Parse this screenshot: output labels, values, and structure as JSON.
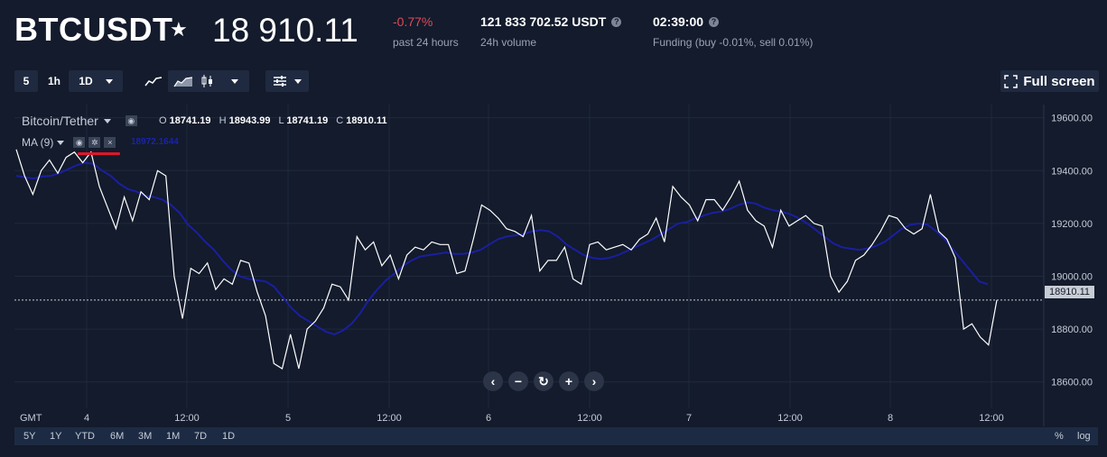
{
  "header": {
    "symbol": "BTCUSDT",
    "star": "★",
    "price": "18 910.11",
    "change": "-0.77%",
    "change_label": "past 24 hours",
    "volume": "121 833 702.52 USDT",
    "volume_label": "24h volume",
    "funding_time": "02:39:00",
    "funding_label": "Funding (buy -0.01%, sell 0.01%)",
    "help_glyph": "?"
  },
  "toolbar": {
    "interval_5": "5",
    "interval_1h": "1h",
    "interval_1d": "1D",
    "full_screen": "Full screen"
  },
  "legend": {
    "pair": "Bitcoin/Tether",
    "o_label": "O",
    "o": "18741.19",
    "h_label": "H",
    "h": "18943.99",
    "l_label": "L",
    "l": "18741.19",
    "c_label": "C",
    "c": "18910.11",
    "ma_label": "MA (9)",
    "ma_value": "18972.1644"
  },
  "colors": {
    "background": "#131b2c",
    "price_line": "#ffffff",
    "ma_line": "#1a1fa0",
    "negative": "#e04a57",
    "highlight": "#e0152a"
  },
  "chart_data": {
    "type": "line",
    "y_ticks": [
      "19600.00",
      "19400.00",
      "19200.00",
      "19000.00",
      "18800.00",
      "18600.00"
    ],
    "y_tick_values": [
      19600,
      19400,
      19200,
      19000,
      18800,
      18600
    ],
    "ylim": [
      18500,
      19650
    ],
    "x_ticks": [
      "4",
      "12:00",
      "5",
      "12:00",
      "6",
      "12:00",
      "7",
      "12:00",
      "8",
      "12:00"
    ],
    "x_axis_label": "GMT",
    "last_price": 18910.11,
    "last_price_label": "18910.11",
    "series": [
      {
        "values": [
          19480,
          19380,
          19310,
          19400,
          19440,
          19390,
          19450,
          19470,
          19430,
          19470,
          19340,
          19260,
          19180,
          19300,
          19210,
          19320,
          19290,
          19400,
          19380,
          19000,
          18840,
          19030,
          19010,
          19050,
          18950,
          18990,
          18970,
          19060,
          19050,
          18940,
          18850,
          18670,
          18650,
          18780,
          18650,
          18800,
          18830,
          18880,
          18970,
          18960,
          18910,
          19150,
          19100,
          19130,
          19040,
          19080,
          18990,
          19080,
          19110,
          19100,
          19130,
          19120,
          19120,
          19010,
          19020,
          19140,
          19270,
          19250,
          19220,
          19180,
          19170,
          19150,
          19230,
          19020,
          19060,
          19060,
          19110,
          18990,
          18970,
          19120,
          19130,
          19100,
          19110,
          19120,
          19100,
          19140,
          19160,
          19220,
          19130,
          19340,
          19300,
          19270,
          19210,
          19290,
          19290,
          19250,
          19300,
          19360,
          19250,
          19210,
          19190,
          19110,
          19250,
          19190,
          19210,
          19230,
          19200,
          19190,
          19000,
          18940,
          18980,
          19060,
          19080,
          19120,
          19170,
          19230,
          19220,
          19180,
          19160,
          19180,
          19310,
          19170,
          19140,
          19070,
          18800,
          18820,
          18770,
          18740,
          18910
        ]
      },
      {
        "name": "MA (9)",
        "values": [
          19380,
          19375,
          19370,
          19378,
          19380,
          19390,
          19405,
          19420,
          19430,
          19425,
          19400,
          19380,
          19350,
          19330,
          19320,
          19305,
          19300,
          19290,
          19270,
          19240,
          19195,
          19165,
          19130,
          19100,
          19060,
          19025,
          19000,
          18990,
          18985,
          18980,
          18960,
          18920,
          18880,
          18850,
          18830,
          18810,
          18790,
          18780,
          18795,
          18820,
          18860,
          18910,
          18950,
          18985,
          19010,
          19040,
          19060,
          19075,
          19080,
          19085,
          19090,
          19085,
          19085,
          19090,
          19100,
          19120,
          19140,
          19150,
          19155,
          19160,
          19170,
          19175,
          19170,
          19150,
          19120,
          19100,
          19080,
          19070,
          19065,
          19070,
          19080,
          19095,
          19110,
          19125,
          19140,
          19160,
          19180,
          19200,
          19205,
          19220,
          19230,
          19240,
          19245,
          19255,
          19270,
          19280,
          19275,
          19260,
          19250,
          19245,
          19235,
          19220,
          19200,
          19175,
          19150,
          19125,
          19110,
          19105,
          19100,
          19105,
          19115,
          19130,
          19155,
          19180,
          19195,
          19200,
          19195,
          19170,
          19140,
          19100,
          19060,
          19020,
          18980,
          18970
        ]
      }
    ]
  },
  "nav_buttons": [
    "‹",
    "−",
    "↻",
    "+",
    "›"
  ],
  "ranges": [
    "5Y",
    "1Y",
    "YTD",
    "6M",
    "3M",
    "1M",
    "7D",
    "1D"
  ],
  "scale_options": [
    "%",
    "log"
  ]
}
